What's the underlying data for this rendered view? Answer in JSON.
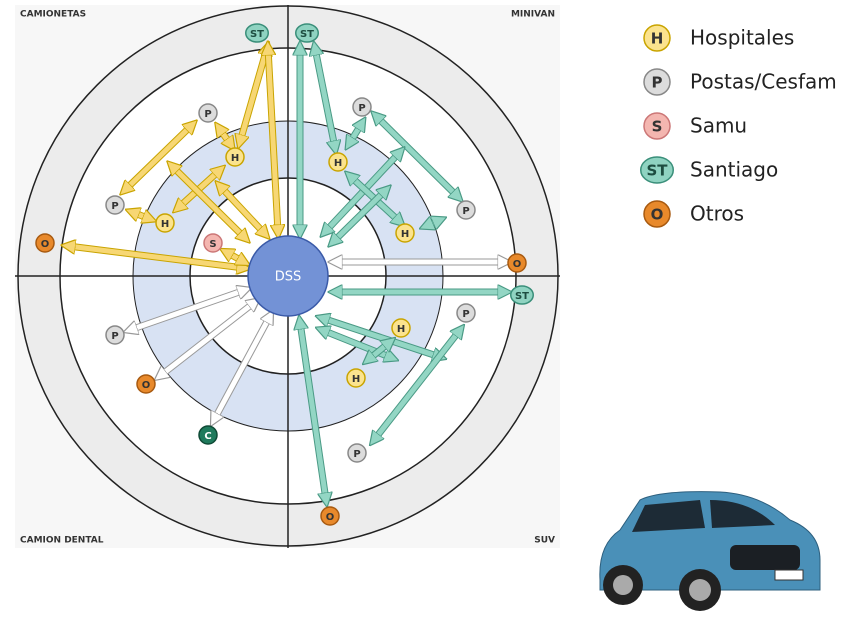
{
  "quadrants": {
    "top_left": "CAMIONETAS",
    "top_right": "MINIVAN",
    "bottom_left": "CAMION DENTAL",
    "bottom_right": "SUV"
  },
  "center": "DSS",
  "nodes": [
    "ST",
    "ST",
    "P",
    "H",
    "P",
    "H",
    "O",
    "S",
    "P",
    "H",
    "P",
    "H",
    "O",
    "ST",
    "P",
    "H",
    "H",
    "P",
    "O",
    "P",
    "O",
    "C"
  ],
  "legend": [
    {
      "badge": "H",
      "label": "Hospitales"
    },
    {
      "badge": "P",
      "label": "Postas/Cesfam"
    },
    {
      "badge": "S",
      "label": "Samu"
    },
    {
      "badge": "ST",
      "label": "Santiago"
    },
    {
      "badge": "O",
      "label": "Otros"
    }
  ]
}
